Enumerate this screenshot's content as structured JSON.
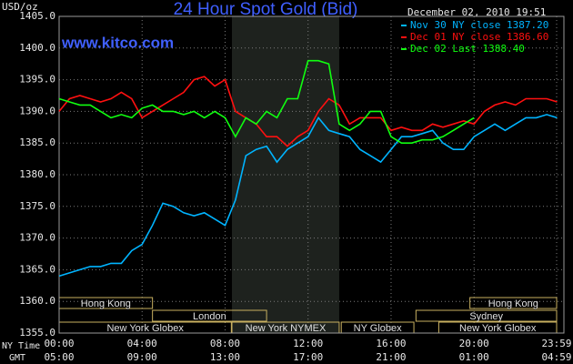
{
  "chart_data": {
    "type": "line",
    "title": "24 Hour Spot Gold (Bid)",
    "site": "www.kitco.com",
    "timestamp": "December 02, 2010 19:51",
    "y_label": "USD/oz",
    "x_row_labels": [
      "NY Time",
      "GMT"
    ],
    "x": [
      0,
      0.5,
      1,
      1.5,
      2,
      2.5,
      3,
      3.5,
      4,
      4.5,
      5,
      5.5,
      6,
      6.5,
      7,
      7.5,
      8,
      8.5,
      9,
      9.5,
      10,
      10.5,
      11,
      11.5,
      12,
      12.5,
      13,
      13.5,
      14,
      14.5,
      15,
      15.5,
      16,
      16.5,
      17,
      17.5,
      18,
      18.5,
      19,
      19.5,
      20,
      20.5,
      21,
      21.5,
      22,
      22.5,
      23,
      23.5,
      24
    ],
    "xlim": [
      0,
      23.98
    ],
    "xticks": [
      {
        "value": 0,
        "label": "00:00"
      },
      {
        "value": 4,
        "label": "04:00"
      },
      {
        "value": 8,
        "label": "08:00"
      },
      {
        "value": 12,
        "label": "12:00"
      },
      {
        "value": 16,
        "label": "16:00"
      },
      {
        "value": 20,
        "label": "20:00"
      },
      {
        "value": 23.98,
        "label": "23:59"
      }
    ],
    "x2ticklabels": [
      "05:00",
      "09:00",
      "13:00",
      "17:00",
      "21:00",
      "01:00",
      "04:59"
    ],
    "ylim": [
      1355,
      1405
    ],
    "yticks": [
      {
        "value": 1355,
        "label": "1355.0"
      },
      {
        "value": 1360,
        "label": "1360.0"
      },
      {
        "value": 1365,
        "label": "1365.0"
      },
      {
        "value": 1370,
        "label": "1370.0"
      },
      {
        "value": 1375,
        "label": "1375.0"
      },
      {
        "value": 1380,
        "label": "1380.0"
      },
      {
        "value": 1385,
        "label": "1385.0"
      },
      {
        "value": 1390,
        "label": "1390.0"
      },
      {
        "value": 1395,
        "label": "1395.0"
      },
      {
        "value": 1400,
        "label": "1400.0"
      },
      {
        "value": 1405,
        "label": "1405.0"
      }
    ],
    "grid": true,
    "legend": "top-right",
    "shade": [
      8.33,
      13.5
    ],
    "sessions": [
      {
        "name": "Hong Kong",
        "row": 0,
        "start": 0,
        "end": 4.5
      },
      {
        "name": "Hong Kong",
        "row": 0,
        "start": 19.8,
        "end": 23.98
      },
      {
        "name": "London",
        "row": 1,
        "start": 4.5,
        "end": 10
      },
      {
        "name": "Sydney",
        "row": 1,
        "start": 17.2,
        "end": 23.98
      },
      {
        "name": "New York Globex",
        "row": 2,
        "start": 0,
        "end": 8.3
      },
      {
        "name": "New York NYMEX",
        "row": 2,
        "start": 8.33,
        "end": 13.5
      },
      {
        "name": "NY Globex",
        "row": 2,
        "start": 13.6,
        "end": 17.1
      },
      {
        "name": "New York Globex",
        "row": 2,
        "start": 18.3,
        "end": 23.98
      }
    ],
    "series": [
      {
        "name": "Nov 30 NY close 1387.20",
        "color": "#00b4ff",
        "values": [
          1364,
          1364.5,
          1365,
          1365.5,
          1365.5,
          1366,
          1366,
          1368,
          1369,
          1372,
          1375.5,
          1375,
          1374,
          1373.5,
          1374,
          1373,
          1372,
          1376,
          1383,
          1384,
          1384.5,
          1382,
          1384,
          1385,
          1386,
          1389,
          1387,
          1386.5,
          1386,
          1384,
          1383,
          1382,
          1384,
          1386,
          1386,
          1386.5,
          1387,
          1385,
          1384,
          1384,
          1386,
          1387,
          1388,
          1387,
          1388,
          1389,
          1389,
          1389.5,
          1389
        ]
      },
      {
        "name": "Dec 01 NY close 1386.60",
        "color": "#ff1010",
        "values": [
          1390,
          1392,
          1392.5,
          1392,
          1391.5,
          1392,
          1393,
          1392,
          1389,
          1390,
          1391,
          1392,
          1393,
          1395,
          1395.5,
          1394,
          1395,
          1390,
          1389,
          1388,
          1386,
          1386,
          1384.5,
          1386,
          1387,
          1390,
          1392,
          1391,
          1388,
          1389,
          1389,
          1389,
          1387,
          1387.5,
          1387,
          1387,
          1388,
          1387.5,
          1388,
          1388.5,
          1388,
          1390,
          1391,
          1391.5,
          1391,
          1392,
          1392,
          1392,
          1391.5
        ]
      },
      {
        "name": "Dec 02 Last 1388.40",
        "color": "#10ff10",
        "values": [
          1392,
          1391.5,
          1391,
          1391,
          1390,
          1389,
          1389.5,
          1389,
          1390.5,
          1391,
          1390,
          1390,
          1389.5,
          1390,
          1389,
          1390,
          1389,
          1386,
          1389,
          1388,
          1390,
          1389,
          1392,
          1392,
          1398,
          1398,
          1397.5,
          1388,
          1387,
          1388,
          1390,
          1390,
          1386,
          1385,
          1385,
          1385.5,
          1385.5,
          1386,
          1387,
          1388,
          1389,
          null,
          null,
          null,
          null,
          null,
          null,
          null,
          null
        ]
      }
    ]
  }
}
